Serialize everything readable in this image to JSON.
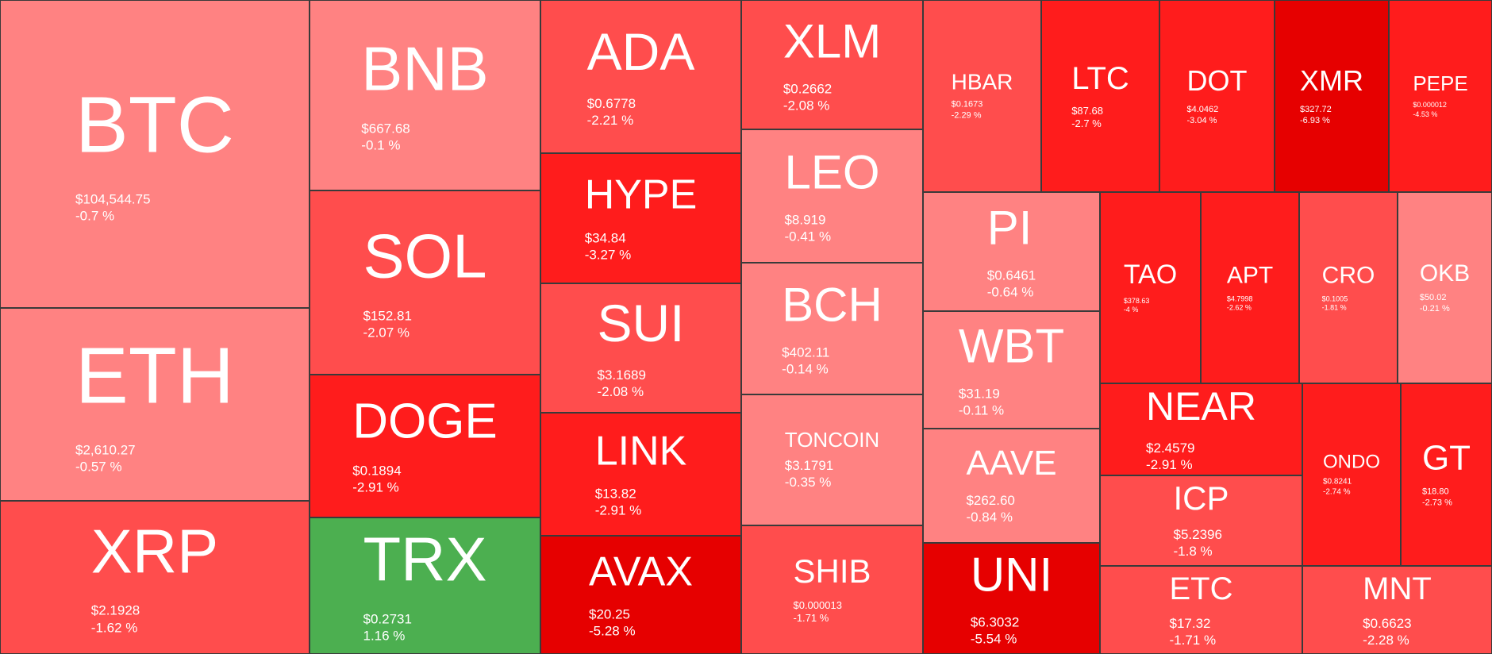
{
  "colors": {
    "red_light": "#ff8282",
    "red_mid": "#ff4d4d",
    "red_strong": "#ff1c1c",
    "red_dark": "#e60000",
    "green": "#4caf50"
  },
  "tiles": [
    {
      "id": "btc",
      "symbol": "BTC",
      "price": "$104,544.75",
      "change": "-0.7 %"
    },
    {
      "id": "eth",
      "symbol": "ETH",
      "price": "$2,610.27",
      "change": "-0.57 %"
    },
    {
      "id": "xrp",
      "symbol": "XRP",
      "price": "$2.1928",
      "change": "-1.62 %"
    },
    {
      "id": "bnb",
      "symbol": "BNB",
      "price": "$667.68",
      "change": "-0.1 %"
    },
    {
      "id": "sol",
      "symbol": "SOL",
      "price": "$152.81",
      "change": "-2.07 %"
    },
    {
      "id": "doge",
      "symbol": "DOGE",
      "price": "$0.1894",
      "change": "-2.91 %"
    },
    {
      "id": "trx",
      "symbol": "TRX",
      "price": "$0.2731",
      "change": "1.16 %"
    },
    {
      "id": "ada",
      "symbol": "ADA",
      "price": "$0.6778",
      "change": "-2.21 %"
    },
    {
      "id": "hype",
      "symbol": "HYPE",
      "price": "$34.84",
      "change": "-3.27 %"
    },
    {
      "id": "sui",
      "symbol": "SUI",
      "price": "$3.1689",
      "change": "-2.08 %"
    },
    {
      "id": "link",
      "symbol": "LINK",
      "price": "$13.82",
      "change": "-2.91 %"
    },
    {
      "id": "avax",
      "symbol": "AVAX",
      "price": "$20.25",
      "change": "-5.28 %"
    },
    {
      "id": "xlm",
      "symbol": "XLM",
      "price": "$0.2662",
      "change": "-2.08 %"
    },
    {
      "id": "leo",
      "symbol": "LEO",
      "price": "$8.919",
      "change": "-0.41 %"
    },
    {
      "id": "bch",
      "symbol": "BCH",
      "price": "$402.11",
      "change": "-0.14 %"
    },
    {
      "id": "toncoin",
      "symbol": "TONCOIN",
      "price": "$3.1791",
      "change": "-0.35 %"
    },
    {
      "id": "shib",
      "symbol": "SHIB",
      "price": "$0.000013",
      "change": "-1.71 %"
    },
    {
      "id": "hbar",
      "symbol": "HBAR",
      "price": "$0.1673",
      "change": "-2.29 %"
    },
    {
      "id": "ltc",
      "symbol": "LTC",
      "price": "$87.68",
      "change": "-2.7 %"
    },
    {
      "id": "dot",
      "symbol": "DOT",
      "price": "$4.0462",
      "change": "-3.04 %"
    },
    {
      "id": "xmr",
      "symbol": "XMR",
      "price": "$327.72",
      "change": "-6.93 %"
    },
    {
      "id": "pepe",
      "symbol": "PEPE",
      "price": "$0.000012",
      "change": "-4.53 %"
    },
    {
      "id": "pi",
      "symbol": "PI",
      "price": "$0.6461",
      "change": "-0.64 %"
    },
    {
      "id": "wbt",
      "symbol": "WBT",
      "price": "$31.19",
      "change": "-0.11 %"
    },
    {
      "id": "aave",
      "symbol": "AAVE",
      "price": "$262.60",
      "change": "-0.84 %"
    },
    {
      "id": "uni",
      "symbol": "UNI",
      "price": "$6.3032",
      "change": "-5.54 %"
    },
    {
      "id": "tao",
      "symbol": "TAO",
      "price": "$378.63",
      "change": "-4 %"
    },
    {
      "id": "apt",
      "symbol": "APT",
      "price": "$4.7998",
      "change": "-2.62 %"
    },
    {
      "id": "cro",
      "symbol": "CRO",
      "price": "$0.1005",
      "change": "-1.81 %"
    },
    {
      "id": "okb",
      "symbol": "OKB",
      "price": "$50.02",
      "change": "-0.21 %"
    },
    {
      "id": "near",
      "symbol": "NEAR",
      "price": "$2.4579",
      "change": "-2.91 %"
    },
    {
      "id": "icp",
      "symbol": "ICP",
      "price": "$5.2396",
      "change": "-1.8 %"
    },
    {
      "id": "ondo",
      "symbol": "ONDO",
      "price": "$0.8241",
      "change": "-2.74 %"
    },
    {
      "id": "gt",
      "symbol": "GT",
      "price": "$18.80",
      "change": "-2.73 %"
    },
    {
      "id": "etc",
      "symbol": "ETC",
      "price": "$17.32",
      "change": "-1.71 %"
    },
    {
      "id": "mnt",
      "symbol": "MNT",
      "price": "$0.6623",
      "change": "-2.28 %"
    }
  ]
}
